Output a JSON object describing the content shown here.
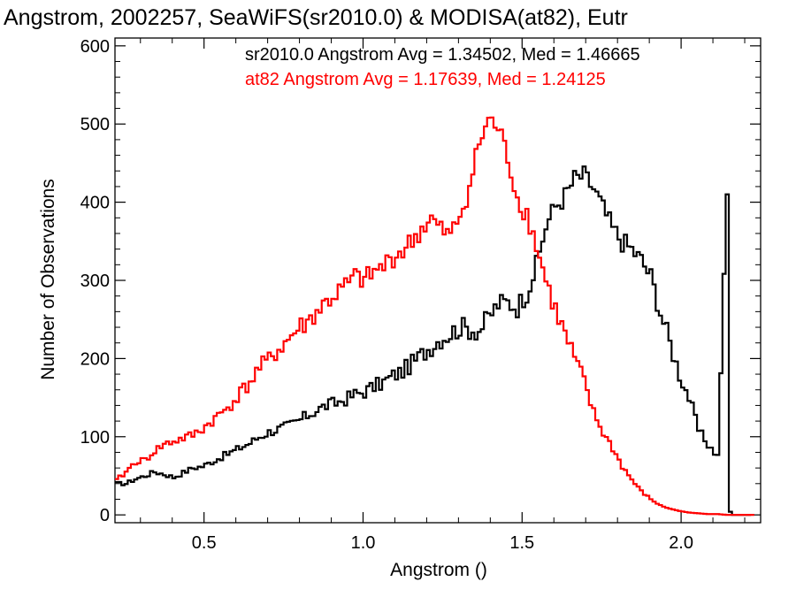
{
  "chart_data": {
    "type": "line",
    "title": "Angstrom, 2002257, SeaWiFS(sr2010.0) & MODISA(at82), Eutr",
    "xlabel": "Angstrom ()",
    "ylabel": "Number of Observations",
    "xlim": [
      0.22,
      2.25
    ],
    "ylim": [
      -10,
      610
    ],
    "xticks": [
      0.5,
      1.0,
      1.5,
      2.0
    ],
    "xtick_labels": [
      "0.5",
      "1.0",
      "1.5",
      "2.0"
    ],
    "yticks": [
      0,
      100,
      200,
      300,
      400,
      500,
      600
    ],
    "ytick_labels": [
      "0",
      "100",
      "200",
      "300",
      "400",
      "500",
      "600"
    ],
    "grid": false,
    "annotations": [
      {
        "text": "sr2010.0 Angstrom Avg = 1.34502, Med = 1.46665",
        "color": "#000000"
      },
      {
        "text": "at82 Angstrom Avg = 1.17639, Med = 1.24125",
        "color": "#ff0000"
      }
    ],
    "series": [
      {
        "color": "#000000",
        "step": "histogram",
        "x": [
          0.22,
          0.25,
          0.28,
          0.31,
          0.34,
          0.37,
          0.4,
          0.43,
          0.46,
          0.49,
          0.52,
          0.55,
          0.58,
          0.61,
          0.64,
          0.67,
          0.7,
          0.73,
          0.76,
          0.79,
          0.82,
          0.85,
          0.88,
          0.91,
          0.94,
          0.97,
          1.0,
          1.03,
          1.06,
          1.09,
          1.12,
          1.15,
          1.18,
          1.21,
          1.24,
          1.27,
          1.3,
          1.33,
          1.36,
          1.39,
          1.42,
          1.45,
          1.48,
          1.51,
          1.54,
          1.57,
          1.6,
          1.63,
          1.66,
          1.69,
          1.72,
          1.75,
          1.78,
          1.81,
          1.84,
          1.87,
          1.9,
          1.93,
          1.96,
          1.99,
          2.02,
          2.05,
          2.08,
          2.11,
          2.14,
          2.15,
          2.16,
          2.19,
          2.22
        ],
        "y": [
          40,
          40,
          46,
          50,
          55,
          52,
          48,
          54,
          60,
          62,
          68,
          74,
          80,
          86,
          92,
          100,
          106,
          110,
          114,
          120,
          127,
          134,
          140,
          143,
          148,
          154,
          158,
          164,
          170,
          178,
          184,
          194,
          205,
          216,
          226,
          232,
          240,
          238,
          236,
          252,
          270,
          272,
          266,
          285,
          318,
          370,
          395,
          408,
          430,
          434,
          418,
          392,
          366,
          350,
          340,
          326,
          305,
          260,
          220,
          180,
          150,
          108,
          90,
          75,
          410,
          4,
          0,
          0,
          0
        ]
      },
      {
        "color": "#ff0000",
        "step": "histogram",
        "x": [
          0.22,
          0.25,
          0.28,
          0.31,
          0.34,
          0.37,
          0.4,
          0.43,
          0.46,
          0.49,
          0.52,
          0.55,
          0.58,
          0.61,
          0.64,
          0.67,
          0.7,
          0.73,
          0.76,
          0.79,
          0.82,
          0.85,
          0.88,
          0.91,
          0.94,
          0.97,
          1.0,
          1.03,
          1.06,
          1.09,
          1.12,
          1.15,
          1.18,
          1.21,
          1.24,
          1.27,
          1.3,
          1.33,
          1.36,
          1.39,
          1.42,
          1.45,
          1.48,
          1.51,
          1.54,
          1.57,
          1.6,
          1.63,
          1.66,
          1.69,
          1.72,
          1.75,
          1.78,
          1.81,
          1.84,
          1.87,
          1.9,
          1.93,
          1.96,
          1.99,
          2.02,
          2.05,
          2.08,
          2.11,
          2.14,
          2.17,
          2.2,
          2.23
        ],
        "y": [
          44,
          55,
          68,
          70,
          82,
          90,
          94,
          98,
          102,
          110,
          120,
          130,
          142,
          156,
          170,
          188,
          198,
          212,
          224,
          238,
          246,
          260,
          272,
          282,
          292,
          304,
          300,
          310,
          318,
          330,
          338,
          350,
          366,
          378,
          364,
          356,
          384,
          420,
          475,
          505,
          495,
          458,
          405,
          385,
          345,
          300,
          262,
          230,
          200,
          170,
          130,
          105,
          85,
          62,
          45,
          30,
          20,
          12,
          8,
          5,
          3,
          2,
          1,
          1,
          0,
          0,
          0,
          0
        ]
      }
    ]
  }
}
